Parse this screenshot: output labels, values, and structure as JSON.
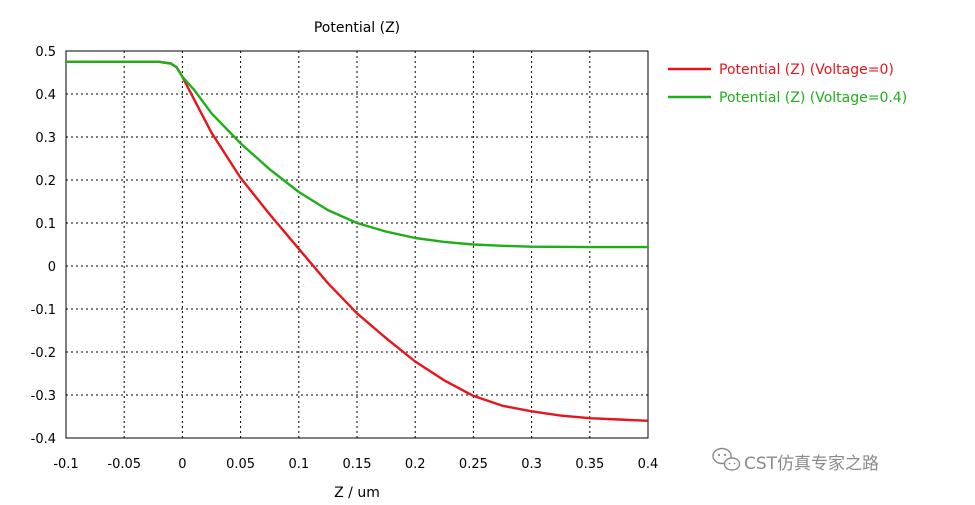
{
  "chart_data": {
    "type": "line",
    "title": "Potential (Z)",
    "xlabel": "Z / um",
    "ylabel": "",
    "xlim": [
      -0.1,
      0.4
    ],
    "ylim": [
      -0.4,
      0.5
    ],
    "grid": true,
    "legend_position": "top-right",
    "x_ticks": [
      "-0.1",
      "-0.05",
      "0",
      "0.05",
      "0.1",
      "0.15",
      "0.2",
      "0.25",
      "0.3",
      "0.35",
      "0.4"
    ],
    "y_ticks": [
      "0.5",
      "0.4",
      "0.3",
      "0.2",
      "0.1",
      "0",
      "-0.1",
      "-0.2",
      "-0.3",
      "-0.4"
    ],
    "series": [
      {
        "name": "Potential (Z) (Voltage=0)",
        "color": "#e8141b",
        "points": [
          [
            -0.1,
            0.475
          ],
          [
            -0.02,
            0.475
          ],
          [
            -0.01,
            0.471
          ],
          [
            -0.005,
            0.462
          ],
          [
            0,
            0.44
          ],
          [
            0.01,
            0.388
          ],
          [
            0.025,
            0.31
          ],
          [
            0.05,
            0.205
          ],
          [
            0.075,
            0.12
          ],
          [
            0.1,
            0.04
          ],
          [
            0.125,
            -0.04
          ],
          [
            0.15,
            -0.11
          ],
          [
            0.175,
            -0.168
          ],
          [
            0.2,
            -0.222
          ],
          [
            0.225,
            -0.266
          ],
          [
            0.25,
            -0.302
          ],
          [
            0.275,
            -0.325
          ],
          [
            0.3,
            -0.338
          ],
          [
            0.325,
            -0.348
          ],
          [
            0.35,
            -0.354
          ],
          [
            0.375,
            -0.357
          ],
          [
            0.4,
            -0.36
          ]
        ]
      },
      {
        "name": "Potential (Z) (Voltage=0.4)",
        "color": "#1fae1a",
        "points": [
          [
            -0.1,
            0.475
          ],
          [
            -0.02,
            0.475
          ],
          [
            -0.01,
            0.471
          ],
          [
            -0.005,
            0.462
          ],
          [
            0,
            0.44
          ],
          [
            0.01,
            0.41
          ],
          [
            0.025,
            0.355
          ],
          [
            0.05,
            0.285
          ],
          [
            0.075,
            0.225
          ],
          [
            0.1,
            0.172
          ],
          [
            0.125,
            0.13
          ],
          [
            0.15,
            0.1
          ],
          [
            0.175,
            0.08
          ],
          [
            0.2,
            0.065
          ],
          [
            0.225,
            0.056
          ],
          [
            0.25,
            0.05
          ],
          [
            0.275,
            0.047
          ],
          [
            0.3,
            0.045
          ],
          [
            0.35,
            0.044
          ],
          [
            0.4,
            0.044
          ]
        ]
      }
    ]
  },
  "watermark": {
    "text": "CST仿真专家之路",
    "icon": "wechat-icon"
  }
}
